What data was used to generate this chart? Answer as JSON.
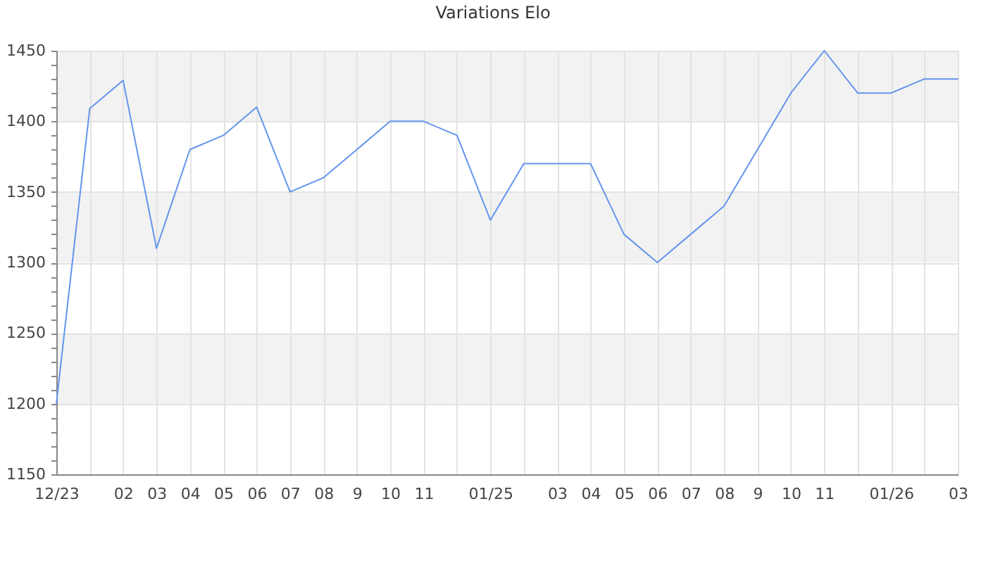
{
  "chart_data": {
    "type": "line",
    "title": "Variations Elo",
    "categories": [
      "12/23",
      null,
      "02",
      "03",
      "04",
      "05",
      "06",
      "07",
      "08",
      "9",
      "10",
      "11",
      null,
      "01/25",
      null,
      "03",
      "04",
      "05",
      "06",
      "07",
      "08",
      "9",
      "10",
      "11",
      null,
      "01/26",
      null,
      "03"
    ],
    "values": [
      1200,
      1409,
      1429,
      1310,
      1380,
      1390,
      1410,
      1350,
      1360,
      1380,
      1400,
      1400,
      1390,
      1330,
      1370,
      1370,
      1370,
      1320,
      1300,
      1320,
      1340,
      1380,
      1420,
      1450,
      1420,
      1420,
      1430,
      1430
    ],
    "color": "#6495ed",
    "ylim": [
      1150,
      1450
    ],
    "yticks": [
      1150,
      {
        "value": 1160,
        "label": null
      },
      {
        "value": 1170,
        "label": null
      },
      {
        "value": 1180,
        "label": null
      },
      {
        "value": 1190,
        "label": null
      },
      1200,
      {
        "value": 1210,
        "label": null
      },
      {
        "value": 1220,
        "label": null
      },
      {
        "value": 1230,
        "label": null
      },
      {
        "value": 1240,
        "label": null
      },
      1250,
      {
        "value": 1260,
        "label": null
      },
      {
        "value": 1270,
        "label": null
      },
      {
        "value": 1280,
        "label": null
      },
      {
        "value": 1290,
        "label": null
      },
      1300,
      {
        "value": 1310,
        "label": null
      },
      {
        "value": 1320,
        "label": null
      },
      {
        "value": 1330,
        "label": null
      },
      {
        "value": 1340,
        "label": null
      },
      1350,
      {
        "value": 1360,
        "label": null
      },
      {
        "value": 1370,
        "label": null
      },
      {
        "value": 1380,
        "label": null
      },
      {
        "value": 1390,
        "label": null
      },
      1400,
      {
        "value": 1410,
        "label": null
      },
      {
        "value": 1420,
        "label": null
      },
      {
        "value": 1430,
        "label": null
      },
      {
        "value": 1440,
        "label": null
      },
      1450
    ],
    "grid": true,
    "bands": [
      {
        "axis": "y",
        "from": 1200,
        "to": 1250,
        "color": "#f2f2f2"
      },
      {
        "axis": "y",
        "from": 1300,
        "to": 1350,
        "color": "#f2f2f2"
      },
      {
        "axis": "y",
        "from": 1400,
        "to": 1450,
        "color": "#f2f2f2"
      }
    ]
  }
}
